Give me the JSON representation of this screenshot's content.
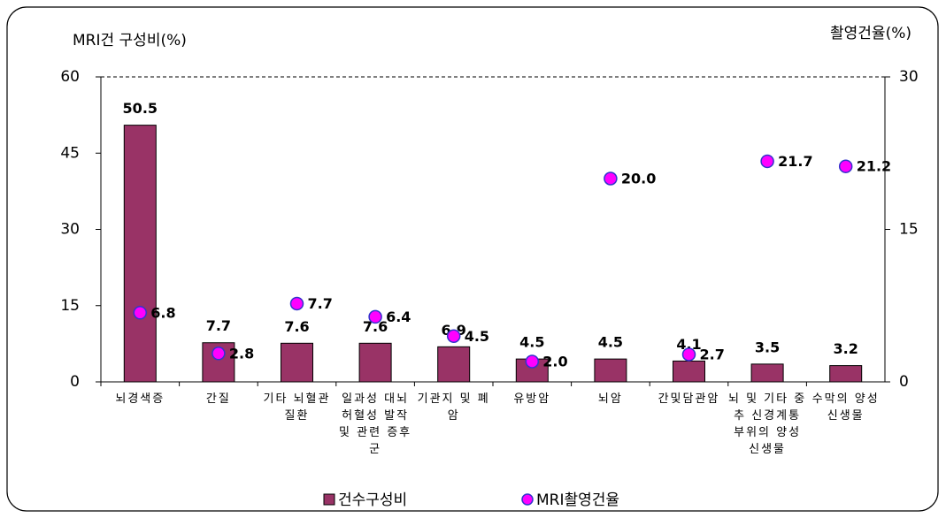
{
  "chart_data": {
    "type": "bar",
    "y_label": "MRI건 구성비(%)",
    "y2_label": "촬영건율(%)",
    "categories": [
      "뇌경색증",
      "간질",
      "기타 뇌혈관 질환",
      "일과성 대뇌 허혈성 발작 및 관련 증후군",
      "기관지 및 폐암",
      "유방암",
      "뇌암",
      "간및담관암",
      "뇌 및 기타 중추 신경계통 부위의 양성신생물",
      "수막의 양성신생물"
    ],
    "series": [
      {
        "name": "건수구성비",
        "type": "bar",
        "color": "#993366",
        "values": [
          50.5,
          7.7,
          7.6,
          7.6,
          6.9,
          4.5,
          4.5,
          4.1,
          3.5,
          3.2
        ]
      },
      {
        "name": "MRI촬영건율",
        "type": "scatter",
        "axis": "y2",
        "color": "#ff00ff",
        "edgecolor": "#3333cc",
        "values": [
          6.8,
          2.8,
          7.7,
          6.4,
          4.5,
          2.0,
          20.0,
          2.7,
          21.7,
          21.2
        ],
        "value_labels": [
          "6.8",
          "2.8",
          "7.7",
          "6.4",
          "4.5",
          "2.0",
          "20.0",
          "2.7",
          "21.7",
          "21.2"
        ]
      }
    ],
    "ylim": [
      0,
      60
    ],
    "yticks": [
      0,
      15,
      30,
      45,
      60
    ],
    "y2lim": [
      0,
      30
    ],
    "y2ticks": [
      0,
      15,
      30
    ],
    "legend": "bottom"
  }
}
